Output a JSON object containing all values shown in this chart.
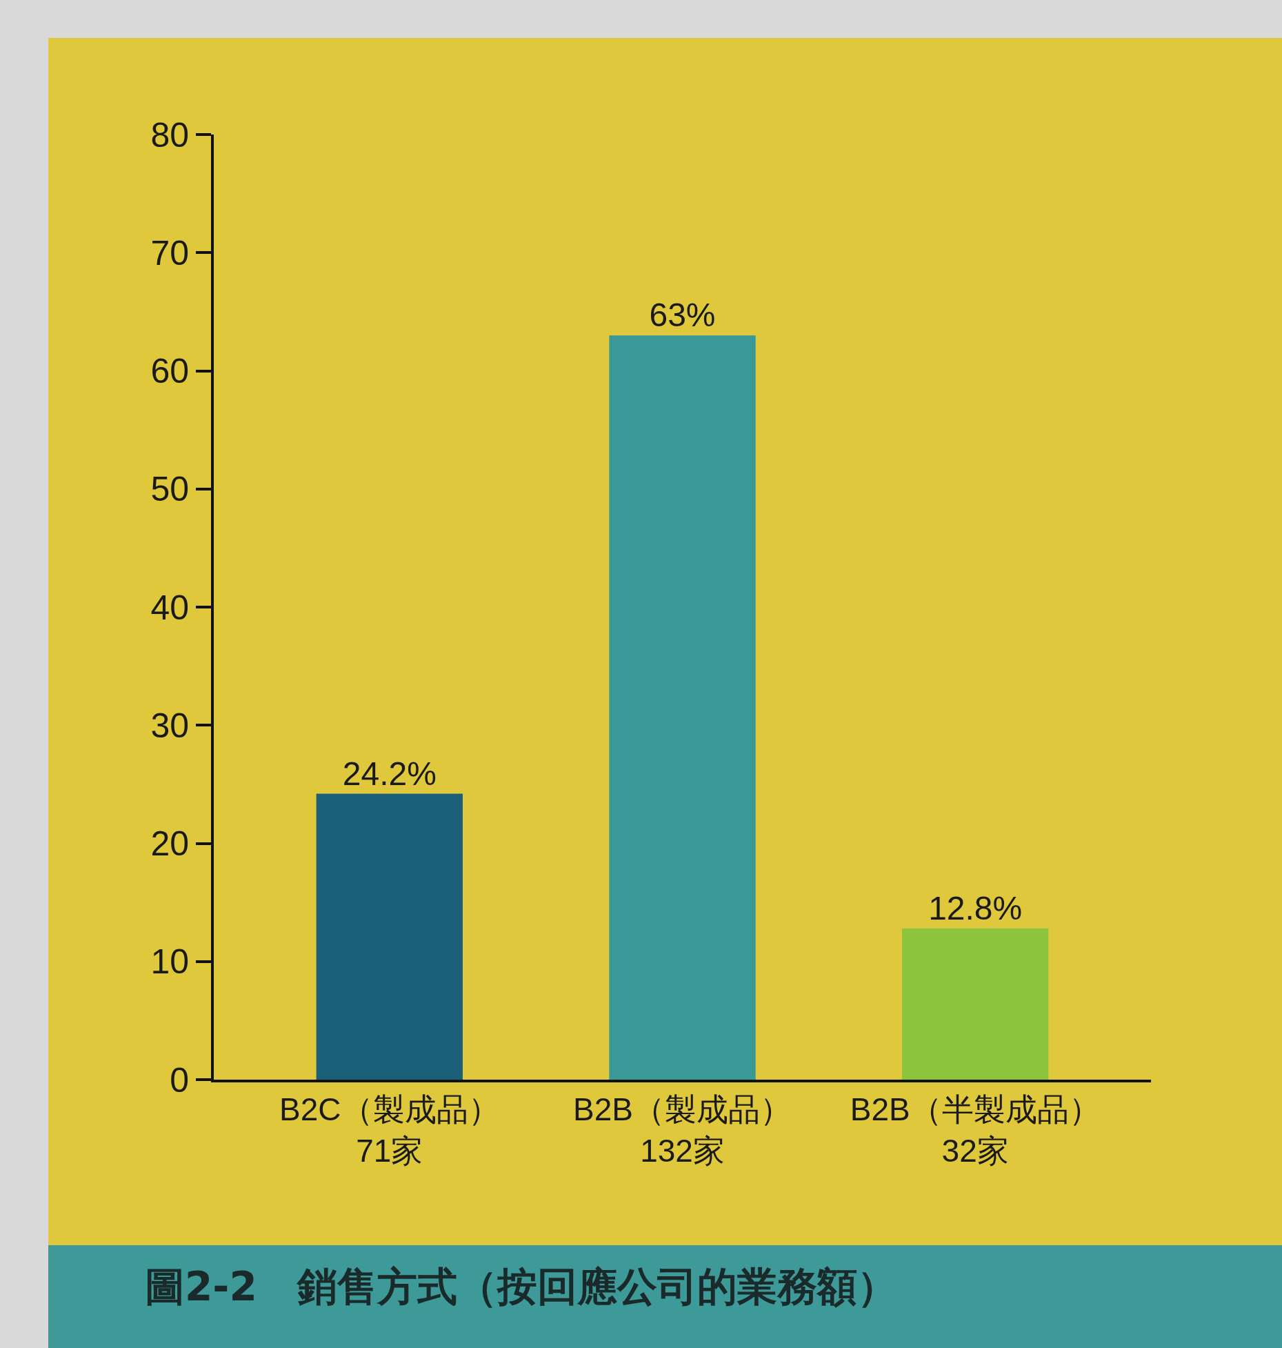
{
  "chart_data": {
    "type": "bar",
    "title": "圖2-2　銷售方式（按回應公司的業務額）",
    "categories": [
      "B2C（製成品）\n71家",
      "B2B（製成品）\n132家",
      "B2B（半製成品）\n32家"
    ],
    "values": [
      24.2,
      63,
      12.8
    ],
    "colors": [
      "#1b5f78",
      "#3a9896",
      "#8dc43e"
    ],
    "value_labels": [
      "24.2%",
      "63%",
      "12.8%"
    ],
    "ylim": [
      0,
      80
    ],
    "yticks": [
      0,
      10,
      20,
      30,
      40,
      50,
      60,
      70,
      80
    ],
    "grid": false
  }
}
